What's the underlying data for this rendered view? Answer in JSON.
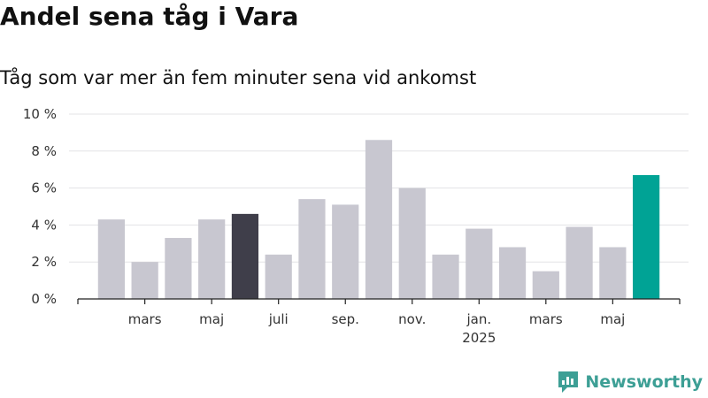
{
  "header": {
    "title": "Andel sena tåg i Vara",
    "subtitle": "Tåg som var mer än fem minuter sena vid ankomst"
  },
  "brand": {
    "name": "Newsworthy",
    "color": "#3d9f95",
    "icon": "newsworthy-logo-icon"
  },
  "colors": {
    "default": "#c8c7d0",
    "highlight": "#3f3e4a",
    "latest": "#00a395"
  },
  "chart_data": {
    "type": "bar",
    "title": "Andel sena tåg i Vara",
    "subtitle": "Tåg som var mer än fem minuter sena vid ankomst",
    "xlabel": "",
    "ylabel": "",
    "ylim": [
      0,
      10
    ],
    "yticks": [
      0,
      2,
      4,
      6,
      8,
      10
    ],
    "ytick_labels": [
      "0 %",
      "2 %",
      "4 %",
      "6 %",
      "8 %",
      "10 %"
    ],
    "grid": true,
    "categories": [
      "2024-02",
      "2024-03",
      "2024-04",
      "2024-05",
      "2024-06",
      "2024-07",
      "2024-08",
      "2024-09",
      "2024-10",
      "2024-11",
      "2024-12",
      "2025-01",
      "2025-02",
      "2025-03",
      "2025-04",
      "2025-05",
      "2025-06"
    ],
    "values": [
      4.3,
      2.0,
      3.3,
      4.3,
      4.6,
      2.4,
      5.4,
      5.1,
      8.6,
      6.0,
      2.4,
      3.8,
      2.8,
      1.5,
      3.9,
      2.8,
      6.7
    ],
    "bar_colors": [
      "default",
      "default",
      "default",
      "default",
      "highlight",
      "default",
      "default",
      "default",
      "default",
      "default",
      "default",
      "default",
      "default",
      "default",
      "default",
      "default",
      "latest"
    ],
    "xtick_labels": [
      {
        "index": 1,
        "label": "mars",
        "sub": ""
      },
      {
        "index": 3,
        "label": "maj",
        "sub": ""
      },
      {
        "index": 5,
        "label": "juli",
        "sub": ""
      },
      {
        "index": 7,
        "label": "sep.",
        "sub": ""
      },
      {
        "index": 9,
        "label": "nov.",
        "sub": ""
      },
      {
        "index": 11,
        "label": "jan.",
        "sub": "2025"
      },
      {
        "index": 13,
        "label": "mars",
        "sub": ""
      },
      {
        "index": 15,
        "label": "maj",
        "sub": ""
      }
    ]
  }
}
